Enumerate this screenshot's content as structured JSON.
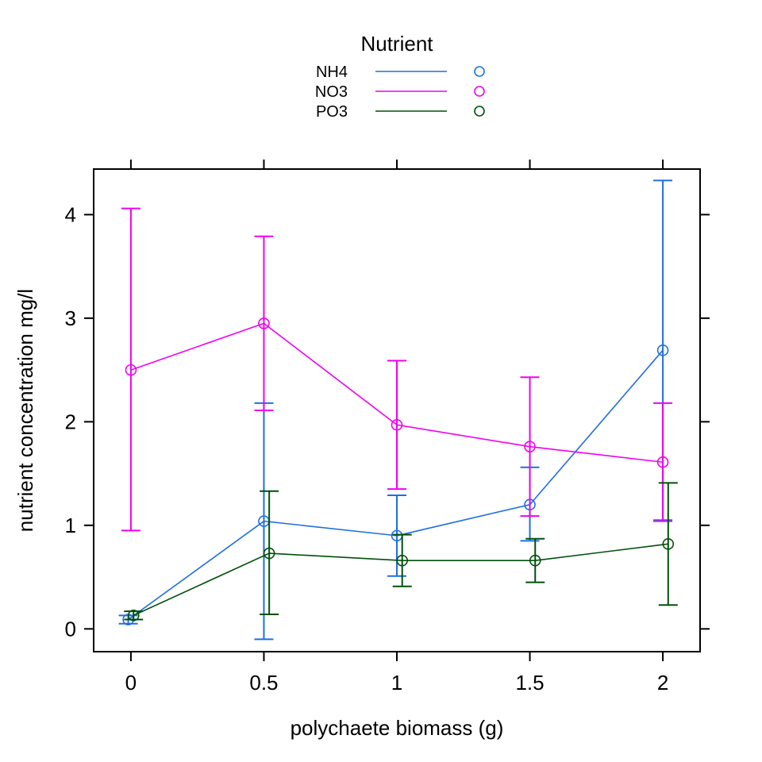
{
  "chart_data": {
    "type": "line",
    "xlabel": "polychaete biomass (g)",
    "ylabel": "nutrient concentration mg/l",
    "legend": {
      "title": "Nutrient",
      "placement": "top-center"
    },
    "x_ticks": [
      "0",
      "0.5",
      "1",
      "1.5",
      "2"
    ],
    "y_ticks": [
      "0",
      "1",
      "2",
      "3",
      "4"
    ],
    "xlim": [
      -0.14,
      2.14
    ],
    "ylim": [
      -0.22,
      4.44
    ],
    "x": [
      0,
      0.5,
      1,
      1.5,
      2
    ],
    "grid": false,
    "series": [
      {
        "name": "NH4",
        "color": "#1F6FE0",
        "values": [
          0.09,
          1.04,
          0.9,
          1.2,
          2.69
        ],
        "error_low": [
          0.05,
          -0.1,
          0.51,
          0.85,
          1.05
        ],
        "error_high": [
          0.13,
          2.18,
          1.29,
          1.56,
          4.33
        ],
        "x_offset": [
          -0.01,
          0,
          0,
          0,
          0
        ]
      },
      {
        "name": "NO3",
        "color": "#F000F0",
        "values": [
          2.5,
          2.95,
          1.97,
          1.76,
          1.61
        ],
        "error_low": [
          0.95,
          2.11,
          1.35,
          1.09,
          1.04
        ],
        "error_high": [
          4.06,
          3.79,
          2.59,
          2.43,
          2.18
        ],
        "x_offset": [
          0,
          0,
          0,
          0,
          0
        ]
      },
      {
        "name": "PO3",
        "color": "#00500A",
        "values": [
          0.13,
          0.73,
          0.66,
          0.66,
          0.82
        ],
        "error_low": [
          0.09,
          0.14,
          0.41,
          0.45,
          0.23
        ],
        "error_high": [
          0.17,
          1.33,
          0.91,
          0.87,
          1.41
        ],
        "x_offset": [
          0.01,
          0.02,
          0.02,
          0.02,
          0.02
        ]
      }
    ]
  }
}
